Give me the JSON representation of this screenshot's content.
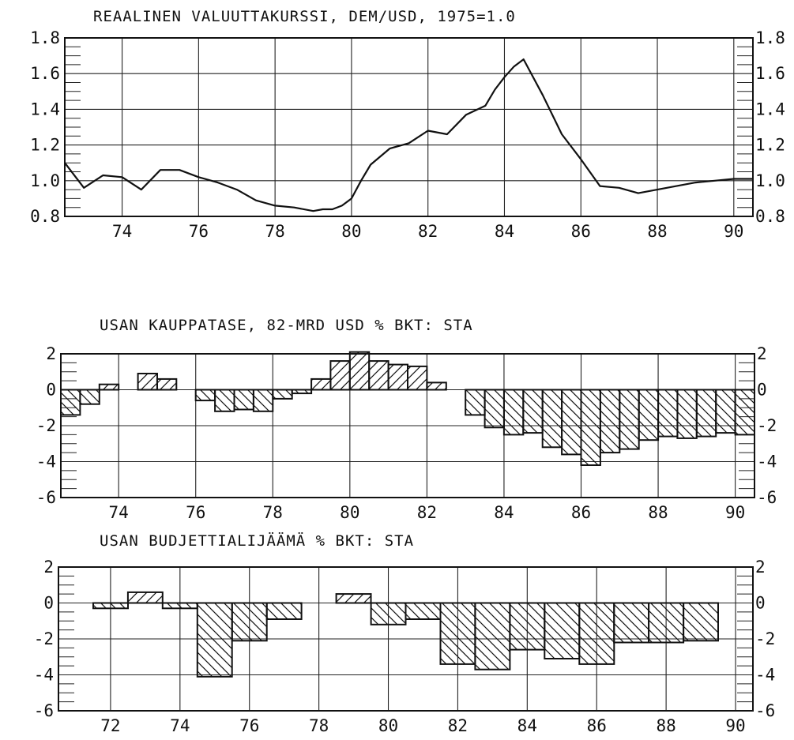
{
  "chart_data": [
    {
      "type": "line",
      "title": "REAALINEN VALUUTTAKURSSI, DEM/USD, 1975=1.0",
      "ylim": [
        0.8,
        1.8
      ],
      "yticks": [
        0.8,
        1.0,
        1.2,
        1.4,
        1.6,
        1.8
      ],
      "ytick_labels": [
        "0.8",
        "1.0",
        "1.2",
        "1.4",
        "1.6",
        "1.8"
      ],
      "xlim": [
        72.5,
        90.5
      ],
      "xticks": [
        74,
        76,
        78,
        80,
        82,
        84,
        86,
        88,
        90
      ],
      "xtick_labels": [
        "74",
        "76",
        "78",
        "80",
        "82",
        "84",
        "86",
        "88",
        "90"
      ],
      "grid": true,
      "series": [
        {
          "x": [
            72.5,
            73.0,
            73.5,
            74.0,
            74.5,
            75.0,
            75.5,
            76.0,
            76.5,
            77.0,
            77.5,
            78.0,
            78.5,
            79.0,
            79.25,
            79.5,
            79.75,
            80.0,
            80.25,
            80.5,
            81.0,
            81.5,
            82.0,
            82.5,
            83.0,
            83.5,
            83.75,
            84.0,
            84.25,
            84.5,
            85.0,
            85.5,
            86.0,
            86.5,
            87.0,
            87.5,
            88.0,
            88.5,
            89.0,
            89.5,
            90.0,
            90.5
          ],
          "y": [
            1.1,
            0.96,
            1.03,
            1.02,
            0.95,
            1.06,
            1.06,
            1.02,
            0.99,
            0.95,
            0.89,
            0.86,
            0.85,
            0.83,
            0.84,
            0.84,
            0.86,
            0.9,
            1.0,
            1.09,
            1.18,
            1.21,
            1.28,
            1.26,
            1.37,
            1.42,
            1.51,
            1.58,
            1.64,
            1.68,
            1.48,
            1.26,
            1.12,
            0.97,
            0.96,
            0.93,
            0.95,
            0.97,
            0.99,
            1.0,
            1.01,
            1.01
          ]
        }
      ]
    },
    {
      "type": "bar",
      "title": "USAN KAUPPATASE, 82-MRD USD % BKT: STA",
      "ylim": [
        -6,
        2
      ],
      "yticks": [
        -6,
        -4,
        -2,
        0,
        2
      ],
      "ytick_labels": [
        "-6",
        "-4",
        "-2",
        "0",
        "2"
      ],
      "xlim": [
        72.5,
        90.5
      ],
      "xticks": [
        74,
        76,
        78,
        80,
        82,
        84,
        86,
        88,
        90
      ],
      "xtick_labels": [
        "74",
        "76",
        "78",
        "80",
        "82",
        "84",
        "86",
        "88",
        "90"
      ],
      "grid": true,
      "bar_width": 0.5,
      "x": [
        72.5,
        73.0,
        73.5,
        74.0,
        74.5,
        75.0,
        75.5,
        76.0,
        76.5,
        77.0,
        77.5,
        78.0,
        78.5,
        79.0,
        79.5,
        80.0,
        80.5,
        81.0,
        81.5,
        82.0,
        82.5,
        83.0,
        83.5,
        84.0,
        84.5,
        85.0,
        85.5,
        86.0,
        86.5,
        87.0,
        87.5,
        88.0,
        88.5,
        89.0,
        89.5,
        90.0
      ],
      "values": [
        -1.4,
        -0.8,
        0.3,
        0.0,
        0.9,
        0.6,
        0.0,
        -0.6,
        -1.2,
        -1.1,
        -1.2,
        -0.5,
        -0.2,
        0.6,
        1.6,
        2.1,
        1.6,
        1.4,
        1.3,
        0.4,
        0.0,
        -1.4,
        -2.1,
        -2.5,
        -2.4,
        -3.2,
        -3.6,
        -4.2,
        -3.5,
        -3.3,
        -2.8,
        -2.6,
        -2.7,
        -2.6,
        -2.4,
        -2.5
      ]
    },
    {
      "type": "bar",
      "title": "USAN BUDJETTIALIJÄÄMÄ % BKT: STA",
      "ylim": [
        -6,
        2
      ],
      "yticks": [
        -6,
        -4,
        -2,
        0,
        2
      ],
      "ytick_labels": [
        "-6",
        "-4",
        "-2",
        "0",
        "2"
      ],
      "xlim": [
        70.5,
        90.5
      ],
      "xticks": [
        72,
        74,
        76,
        78,
        80,
        82,
        84,
        86,
        88,
        90
      ],
      "xtick_labels": [
        "72",
        "74",
        "76",
        "78",
        "80",
        "82",
        "84",
        "86",
        "88",
        "90"
      ],
      "grid": true,
      "bar_width": 1.0,
      "x": [
        71.5,
        72.5,
        73.5,
        74.5,
        75.5,
        76.5,
        77.5,
        78.5,
        79.5,
        80.5,
        81.5,
        82.5,
        83.5,
        84.5,
        85.5,
        86.5,
        87.5,
        88.5
      ],
      "values": [
        -0.3,
        0.6,
        -0.3,
        -4.1,
        -2.1,
        -0.9,
        0.0,
        0.5,
        -1.2,
        -0.9,
        -3.4,
        -3.7,
        -2.6,
        -3.1,
        -3.4,
        -2.2,
        -2.2,
        -2.1
      ]
    }
  ]
}
